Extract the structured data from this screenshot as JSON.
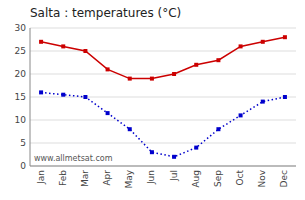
{
  "chart_data": {
    "type": "line",
    "title": "Salta : temperatures (°C)",
    "categories": [
      "Jan",
      "Feb",
      "Mar",
      "Apr",
      "May",
      "Jun",
      "Jul",
      "Aug",
      "Sep",
      "Oct",
      "Nov",
      "Dec"
    ],
    "series": [
      {
        "color": "#cc0000",
        "line_style": "solid",
        "marker": "square",
        "values": [
          27,
          26,
          25,
          21,
          19,
          19,
          20,
          22,
          23,
          26,
          27,
          28
        ]
      },
      {
        "color": "#0000cc",
        "line_style": "dotted",
        "marker": "square",
        "values": [
          16,
          15.5,
          15,
          11.5,
          8,
          3,
          2,
          4,
          8,
          11,
          14,
          15
        ]
      }
    ],
    "ylim": [
      0,
      30
    ],
    "yticks": [
      0,
      5,
      10,
      15,
      20,
      25,
      30
    ],
    "grid": true,
    "annotations": [
      "www.allmetsat.com"
    ]
  }
}
